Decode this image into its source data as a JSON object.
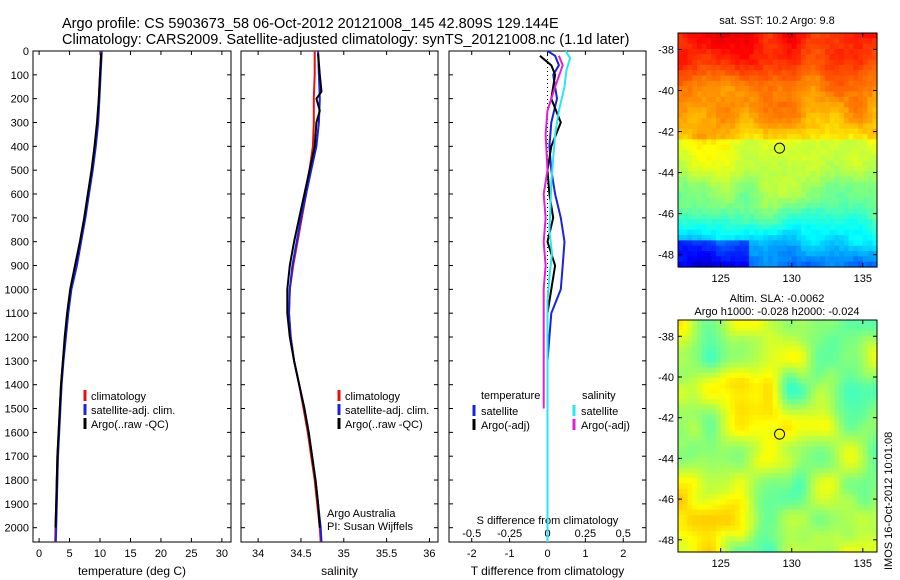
{
  "header": {
    "line1": "Argo profile: CS 5903673_58 06-Oct-2012 20121008_145 42.809S 129.144E",
    "line2": "Climatology: CARS2009. Satellite-adjusted climatology: synTS_20121008.nc (1.1d later)"
  },
  "colors": {
    "climatology": "#e8120c",
    "satellite": "#1a22e0",
    "argo": "#000000",
    "sal_satellite": "#27e8f0",
    "sal_argo": "#e020d8"
  },
  "depth_axis": {
    "ticks": [
      0,
      100,
      200,
      300,
      400,
      500,
      600,
      700,
      800,
      900,
      1000,
      1100,
      1200,
      1300,
      1400,
      1500,
      1600,
      1700,
      1800,
      1900,
      2000
    ],
    "range": [
      0,
      2060
    ]
  },
  "chart_data": [
    {
      "id": "temperature",
      "type": "line",
      "xlabel": "temperature (deg C)",
      "xlim": [
        -1,
        31.5
      ],
      "xticks": [
        0,
        5,
        10,
        15,
        20,
        25,
        30
      ],
      "ylim": [
        2060,
        0
      ],
      "legend": {
        "position": "lower-middle",
        "entries": [
          "climatology",
          "satellite-adj. clim.",
          "Argo(..raw -QC)"
        ]
      },
      "series": [
        {
          "name": "climatology",
          "color": "#e8120c",
          "points": [
            [
              10.2,
              0
            ],
            [
              10.0,
              100
            ],
            [
              9.8,
              200
            ],
            [
              9.6,
              300
            ],
            [
              9.2,
              400
            ],
            [
              8.7,
              500
            ],
            [
              8.1,
              600
            ],
            [
              7.5,
              700
            ],
            [
              6.8,
              800
            ],
            [
              6.1,
              900
            ],
            [
              5.2,
              1000
            ],
            [
              4.7,
              1100
            ],
            [
              4.3,
              1200
            ],
            [
              3.9,
              1300
            ],
            [
              3.6,
              1400
            ],
            [
              3.4,
              1500
            ],
            [
              3.2,
              1600
            ],
            [
              3.0,
              1700
            ],
            [
              2.9,
              1800
            ],
            [
              2.8,
              1900
            ],
            [
              2.7,
              2000
            ],
            [
              2.65,
              2060
            ]
          ]
        },
        {
          "name": "satellite-adj. clim.",
          "color": "#1a22e0",
          "points": [
            [
              10.3,
              0
            ],
            [
              10.1,
              100
            ],
            [
              9.9,
              200
            ],
            [
              9.7,
              300
            ],
            [
              9.3,
              400
            ],
            [
              8.8,
              500
            ],
            [
              8.2,
              600
            ],
            [
              7.6,
              700
            ],
            [
              6.9,
              800
            ],
            [
              6.2,
              900
            ],
            [
              5.3,
              1000
            ],
            [
              4.8,
              1100
            ],
            [
              4.4,
              1200
            ],
            [
              4.0,
              1300
            ],
            [
              3.7,
              1400
            ],
            [
              3.5,
              1500
            ],
            [
              3.3,
              1600
            ],
            [
              3.1,
              1700
            ],
            [
              3.0,
              1800
            ],
            [
              2.9,
              1900
            ],
            [
              2.8,
              2000
            ],
            [
              2.75,
              2060
            ]
          ]
        },
        {
          "name": "Argo(..raw -QC)",
          "color": "#000000",
          "points": [
            [
              10.2,
              10
            ],
            [
              10.0,
              100
            ],
            [
              9.8,
              200
            ],
            [
              9.5,
              300
            ],
            [
              9.1,
              400
            ],
            [
              8.6,
              500
            ],
            [
              8.0,
              600
            ],
            [
              7.4,
              700
            ],
            [
              6.7,
              800
            ],
            [
              5.9,
              900
            ],
            [
              5.1,
              1000
            ],
            [
              4.6,
              1100
            ],
            [
              4.2,
              1200
            ],
            [
              3.9,
              1300
            ],
            [
              3.6,
              1400
            ],
            [
              3.4,
              1500
            ],
            [
              3.2,
              1600
            ],
            [
              3.0,
              1700
            ],
            [
              2.9,
              1800
            ],
            [
              2.8,
              1900
            ],
            [
              2.7,
              2000
            ]
          ]
        }
      ]
    },
    {
      "id": "salinity",
      "type": "line",
      "xlabel": "salinity",
      "xlim": [
        33.8,
        36.1
      ],
      "xticks": [
        34,
        34.5,
        35,
        35.5,
        36
      ],
      "ylim": [
        2060,
        0
      ],
      "legend": {
        "position": "lower-middle",
        "entries": [
          "climatology",
          "satellite-adj. clim.",
          "Argo(..raw -QC)"
        ]
      },
      "annotation": [
        "Argo Australia",
        "PI: Susan Wijffels"
      ],
      "series": [
        {
          "name": "climatology",
          "color": "#e8120c",
          "points": [
            [
              34.66,
              0
            ],
            [
              34.66,
              100
            ],
            [
              34.65,
              200
            ],
            [
              34.65,
              300
            ],
            [
              34.64,
              400
            ],
            [
              34.6,
              500
            ],
            [
              34.56,
              600
            ],
            [
              34.51,
              700
            ],
            [
              34.46,
              800
            ],
            [
              34.41,
              900
            ],
            [
              34.37,
              1000
            ],
            [
              34.36,
              1100
            ],
            [
              34.38,
              1200
            ],
            [
              34.42,
              1300
            ],
            [
              34.48,
              1400
            ],
            [
              34.53,
              1500
            ],
            [
              34.58,
              1600
            ],
            [
              34.62,
              1700
            ],
            [
              34.66,
              1800
            ],
            [
              34.69,
              1900
            ],
            [
              34.72,
              2000
            ],
            [
              34.73,
              2060
            ]
          ]
        },
        {
          "name": "satellite-adj. clim.",
          "color": "#1a22e0",
          "points": [
            [
              34.7,
              0
            ],
            [
              34.71,
              100
            ],
            [
              34.72,
              200
            ],
            [
              34.71,
              300
            ],
            [
              34.68,
              400
            ],
            [
              34.62,
              500
            ],
            [
              34.56,
              600
            ],
            [
              34.5,
              700
            ],
            [
              34.45,
              800
            ],
            [
              34.4,
              900
            ],
            [
              34.37,
              1000
            ],
            [
              34.36,
              1100
            ],
            [
              34.38,
              1200
            ],
            [
              34.42,
              1300
            ],
            [
              34.48,
              1400
            ],
            [
              34.54,
              1500
            ],
            [
              34.59,
              1600
            ],
            [
              34.63,
              1700
            ],
            [
              34.67,
              1800
            ],
            [
              34.7,
              1900
            ],
            [
              34.73,
              2000
            ],
            [
              34.74,
              2060
            ]
          ]
        },
        {
          "name": "Argo(..raw -QC)",
          "color": "#000000",
          "points": [
            [
              34.7,
              10
            ],
            [
              34.72,
              100
            ],
            [
              34.74,
              170
            ],
            [
              34.68,
              200
            ],
            [
              34.72,
              250
            ],
            [
              34.68,
              300
            ],
            [
              34.66,
              400
            ],
            [
              34.6,
              500
            ],
            [
              34.54,
              600
            ],
            [
              34.48,
              700
            ],
            [
              34.42,
              800
            ],
            [
              34.37,
              900
            ],
            [
              34.34,
              1000
            ],
            [
              34.34,
              1100
            ],
            [
              34.37,
              1200
            ],
            [
              34.42,
              1300
            ],
            [
              34.48,
              1400
            ],
            [
              34.54,
              1500
            ],
            [
              34.59,
              1600
            ],
            [
              34.63,
              1700
            ],
            [
              34.67,
              1800
            ],
            [
              34.7,
              1900
            ],
            [
              34.72,
              2000
            ]
          ]
        }
      ]
    },
    {
      "id": "differences",
      "type": "line",
      "xlabel": "T difference from climatology",
      "xlabel_top": "S difference from climatology",
      "xlim": [
        -2.6,
        2.6
      ],
      "xticks": [
        -2,
        -1,
        0,
        1,
        2
      ],
      "top_ticks": [
        -0.5,
        -0.25,
        0,
        0.25,
        0.5
      ],
      "top_tick_labels": [
        "-0.5",
        "-0.25",
        "0",
        "0.25",
        "0.5"
      ],
      "ylim": [
        2060,
        0
      ],
      "legend": {
        "position": "lower-middle",
        "temperature_title": "temperature",
        "salinity_title": "salinity",
        "entries": [
          "satellite",
          "Argo(-adj)",
          "satellite",
          "Argo(-adj)"
        ]
      },
      "series": [
        {
          "name": "satellite",
          "group": "temperature",
          "color": "#1a22e0",
          "points": [
            [
              0.0,
              0
            ],
            [
              0.2,
              20
            ],
            [
              0.3,
              60
            ],
            [
              0.15,
              100
            ],
            [
              0.25,
              200
            ],
            [
              0.1,
              300
            ],
            [
              0.05,
              400
            ],
            [
              0.1,
              500
            ],
            [
              0.2,
              600
            ],
            [
              0.35,
              700
            ],
            [
              0.45,
              800
            ],
            [
              0.4,
              900
            ],
            [
              0.35,
              1000
            ],
            [
              0.1,
              1100
            ],
            [
              0.05,
              1200
            ],
            [
              0.0,
              1300
            ],
            [
              0.0,
              1400
            ],
            [
              0.0,
              1500
            ],
            [
              0.0,
              1600
            ],
            [
              0.0,
              1800
            ],
            [
              0.0,
              2060
            ]
          ]
        },
        {
          "name": "Argo(-adj)",
          "group": "temperature",
          "color": "#000000",
          "points": [
            [
              -0.2,
              20
            ],
            [
              0.1,
              60
            ],
            [
              0.2,
              100
            ],
            [
              0.1,
              200
            ],
            [
              0.35,
              300
            ],
            [
              0.1,
              400
            ],
            [
              0.0,
              500
            ],
            [
              0.05,
              600
            ],
            [
              0.15,
              700
            ],
            [
              0.0,
              800
            ],
            [
              0.2,
              900
            ],
            [
              0.1,
              1000
            ],
            [
              0.0,
              1100
            ],
            [
              0.0,
              1200
            ],
            [
              0.0,
              1300
            ],
            [
              0.0,
              1500
            ],
            [
              0.0,
              1600
            ],
            [
              0.0,
              1800
            ],
            [
              0.0,
              2000
            ]
          ]
        },
        {
          "name": "satellite",
          "group": "salinity",
          "color": "#27e8f0",
          "points": [
            [
              0.48,
              0
            ],
            [
              0.6,
              30
            ],
            [
              0.5,
              80
            ],
            [
              0.45,
              150
            ],
            [
              0.3,
              250
            ],
            [
              0.2,
              350
            ],
            [
              0.15,
              450
            ],
            [
              0.1,
              550
            ],
            [
              0.08,
              650
            ],
            [
              0.05,
              750
            ],
            [
              0.12,
              850
            ],
            [
              0.05,
              950
            ],
            [
              0.0,
              1050
            ],
            [
              0.0,
              1200
            ],
            [
              0.0,
              1400
            ],
            [
              0.0,
              1600
            ],
            [
              0.0,
              1800
            ],
            [
              0.0,
              2060
            ]
          ]
        },
        {
          "name": "Argo(-adj)",
          "group": "salinity",
          "color": "#e020d8",
          "points": [
            [
              0.3,
              20
            ],
            [
              0.4,
              60
            ],
            [
              0.2,
              150
            ],
            [
              0.0,
              250
            ],
            [
              -0.05,
              350
            ],
            [
              0.0,
              500
            ],
            [
              -0.1,
              600
            ],
            [
              -0.05,
              700
            ],
            [
              -0.1,
              800
            ],
            [
              -0.05,
              900
            ],
            [
              -0.1,
              1000
            ],
            [
              -0.1,
              1100
            ],
            [
              -0.1,
              1200
            ],
            [
              -0.1,
              1300
            ],
            [
              -0.1,
              1400
            ],
            [
              -0.1,
              1500
            ]
          ]
        }
      ]
    },
    {
      "id": "sst-map",
      "type": "heatmap",
      "title": "sat. SST: 10.2 Argo: 9.8",
      "xlim": [
        122,
        136
      ],
      "ylim": [
        -48.6,
        -37.2
      ],
      "xticks": [
        125,
        130,
        135
      ],
      "yticks": [
        -38,
        -40,
        -42,
        -44,
        -46,
        -48
      ],
      "marker": {
        "lon": 129.144,
        "lat": -42.809
      }
    },
    {
      "id": "sla-map",
      "type": "heatmap",
      "title_lines": [
        "Altim. SLA: -0.0062",
        "Argo h1000: -0.028 h2000: -0.024"
      ],
      "xlim": [
        122,
        136
      ],
      "ylim": [
        -48.6,
        -37.2
      ],
      "xticks": [
        125,
        130,
        135
      ],
      "yticks": [
        -38,
        -40,
        -42,
        -44,
        -46,
        -48
      ],
      "marker": {
        "lon": 129.144,
        "lat": -42.809
      }
    }
  ],
  "footer": {
    "vertical_stamp": "IMOS 16-Oct-2012 10:01:08"
  }
}
